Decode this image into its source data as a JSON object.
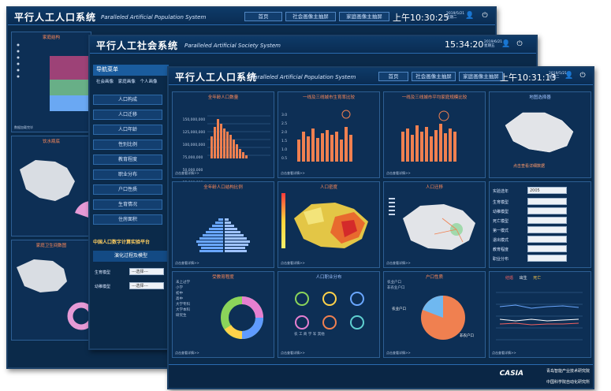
{
  "back_window": {
    "title": "平行人工人口系统",
    "subtitle": "Paralleled Artificial Population System",
    "nav": [
      "首页",
      "社会画像主抽屏",
      "家庭画像主抽屏"
    ],
    "clock": "上午10:30:25",
    "date": "2019/5/21\n星期二",
    "panel_labels": [
      "家庭结构",
      "饮水瓶底",
      "家庭卫生间数图"
    ],
    "status": "数据加载完毕"
  },
  "mid_window": {
    "title": "平行人工社会系统",
    "subtitle": "Paralleled Artificial Society System",
    "clock": "15:34:20",
    "date": "2019/6/21\n星期五",
    "nav_title": "导航菜单",
    "tabs": [
      "社会画像",
      "家庭画像",
      "个人画像"
    ],
    "menu": [
      "人口构成",
      "人口迁移",
      "人口年龄",
      "性别比例",
      "教育程度",
      "职业分布",
      "户口性质",
      "生育情况",
      "住房面积"
    ],
    "section": "中国人口数字计算实验平台",
    "subsection": "演化过程及模型",
    "form": [
      {
        "label": "生育模型",
        "value": "---选择---"
      },
      {
        "label": "幼稚模型",
        "value": "---选择---"
      }
    ]
  },
  "front_window": {
    "title": "平行人工人口系统",
    "subtitle": "Paralleled Artificial Population System",
    "nav": [
      "首页",
      "社会画像主抽屏",
      "家庭画像主抽屏"
    ],
    "clock": "上午10:31:13",
    "date": "2019/5/21\n星期二",
    "panels": [
      {
        "title": "全年龄人口数量",
        "foot": "点击查看详情>>"
      },
      {
        "title": "一线及三线城市生育率比较",
        "foot": "点击查看详情>>"
      },
      {
        "title": "一线及三线城市平均家庭规模比较",
        "foot": "点击查看详情>>"
      },
      {
        "title": "地图选择器",
        "foot": "点击查看详情>>"
      },
      {
        "title": "全年龄人口结构比例",
        "foot": "点击查看详情>>"
      },
      {
        "title": "人口密度",
        "foot": "点击查看详情>>"
      },
      {
        "title": "人口迁移",
        "foot": "点击查看详情>>"
      },
      {
        "title": "",
        "foot": ""
      },
      {
        "title": "受教育程度",
        "foot": "点击查看详情>>"
      },
      {
        "title": "人口职业分布",
        "foot": "点击查看详情>>"
      },
      {
        "title": "户口性质",
        "foot": "点击查看详情>>"
      },
      {
        "title": "",
        "foot": "点击查看详情>>"
      }
    ],
    "map_hint": "点击查看详细数据",
    "selector": {
      "year_label": "实验选年",
      "year_value": "2005",
      "rows": [
        "生育模型",
        "幼稚模型",
        "死亡模型",
        "第一模式",
        "退出模式",
        "教育程度",
        "职业分布",
        "居住面积"
      ]
    },
    "pop_chart_ticks": [
      "150,000,000",
      "125,000,000",
      "100,000,000",
      "75,000,000",
      "50,000,000",
      "25,000,000",
      "0"
    ],
    "rate_ticks": [
      "3.0",
      "2.5",
      "2.0",
      "1.5",
      "1.0",
      "0.5"
    ],
    "line_legend": [
      "结婚",
      "出生",
      "死亡"
    ],
    "edu_legend": [
      "未上过学",
      "小学",
      "初中",
      "高中",
      "大学专科",
      "大学本科",
      "研究生"
    ],
    "hukou_legend": [
      "农业户口",
      "非农业户口"
    ],
    "hukou_labels": [
      "农业户口",
      "非农户口"
    ],
    "occ_labels": [
      "农",
      "工",
      "商",
      "学",
      "军",
      "其他"
    ],
    "logo": "CASIA",
    "footer1": "青岛智能产业技术研究院",
    "footer2": "中国科学院自动化研究所"
  }
}
